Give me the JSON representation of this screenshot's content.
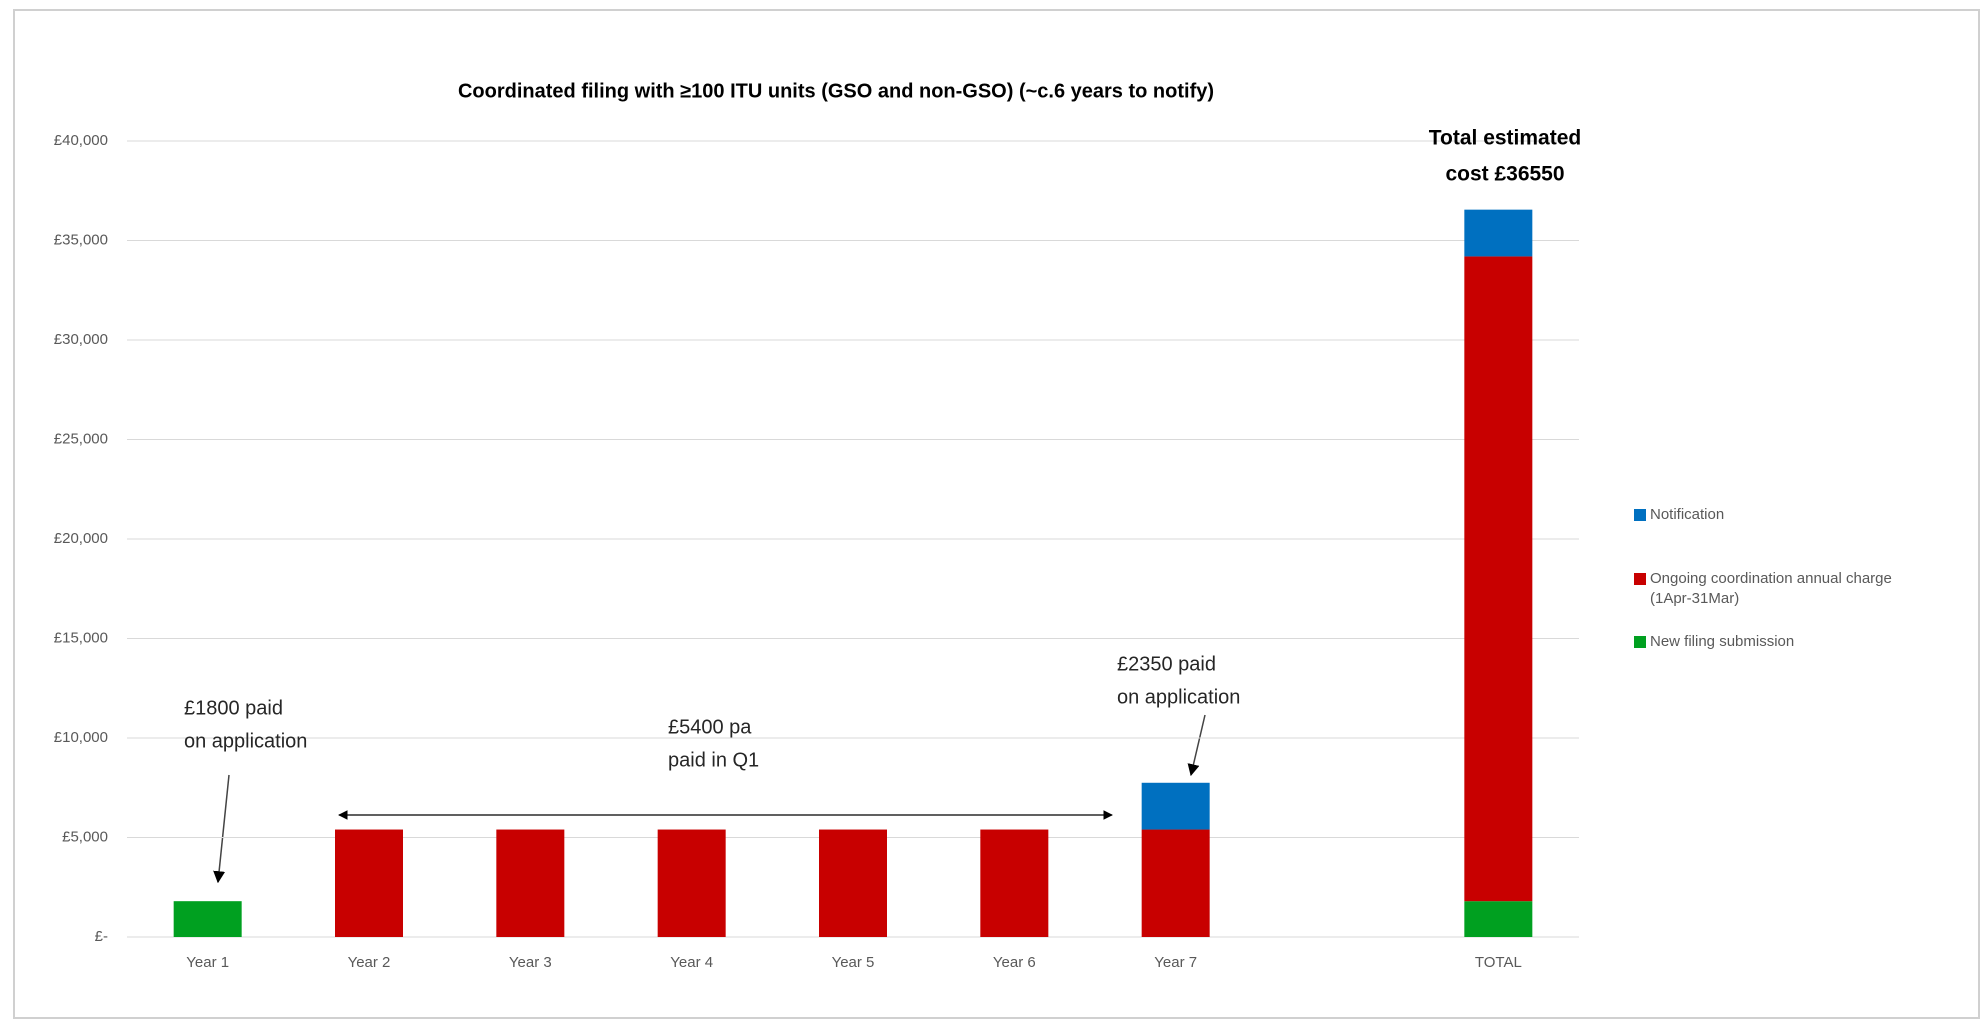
{
  "chart_data": {
    "type": "stacked_bar",
    "title": "Coordinated filing with ≥100 ITU units (GSO and non-GSO) (~c.6 years to notify)",
    "categories": [
      "Year  1",
      "Year 2",
      "Year 3",
      "Year 4",
      "Year 5",
      "Year 6",
      "Year 7",
      null,
      "TOTAL"
    ],
    "series": [
      {
        "name": "New filing submission",
        "color": "#00a020",
        "values": [
          1800,
          0,
          0,
          0,
          0,
          0,
          0,
          null,
          1800
        ]
      },
      {
        "name": "Ongoing coordination annual charge (1Apr-31Mar)",
        "color": "#c80000",
        "values": [
          0,
          5400,
          5400,
          5400,
          5400,
          5400,
          5400,
          null,
          32400
        ]
      },
      {
        "name": "Notification",
        "color": "#0070c0",
        "values": [
          0,
          0,
          0,
          0,
          0,
          0,
          2350,
          null,
          2350
        ]
      }
    ],
    "ylim": [
      0,
      40000
    ],
    "yticks": [
      {
        "value": 0,
        "label": "£-"
      },
      {
        "value": 5000,
        "label": "£5,000"
      },
      {
        "value": 10000,
        "label": "£10,000"
      },
      {
        "value": 15000,
        "label": "£15,000"
      },
      {
        "value": 20000,
        "label": "£20,000"
      },
      {
        "value": 25000,
        "label": "£25,000"
      },
      {
        "value": 30000,
        "label": "£30,000"
      },
      {
        "value": 35000,
        "label": "£35,000"
      },
      {
        "value": 40000,
        "label": "£40,000"
      }
    ],
    "grid": true,
    "legend": "right",
    "annotations": [
      {
        "lines": [
          "£1800 paid",
          "on application"
        ]
      },
      {
        "lines": [
          "£5400 pa",
          "paid in Q1"
        ]
      },
      {
        "lines": [
          "£2350 paid",
          "on application"
        ]
      },
      {
        "lines": [
          "Total estimated",
          "cost £36550"
        ]
      }
    ]
  }
}
